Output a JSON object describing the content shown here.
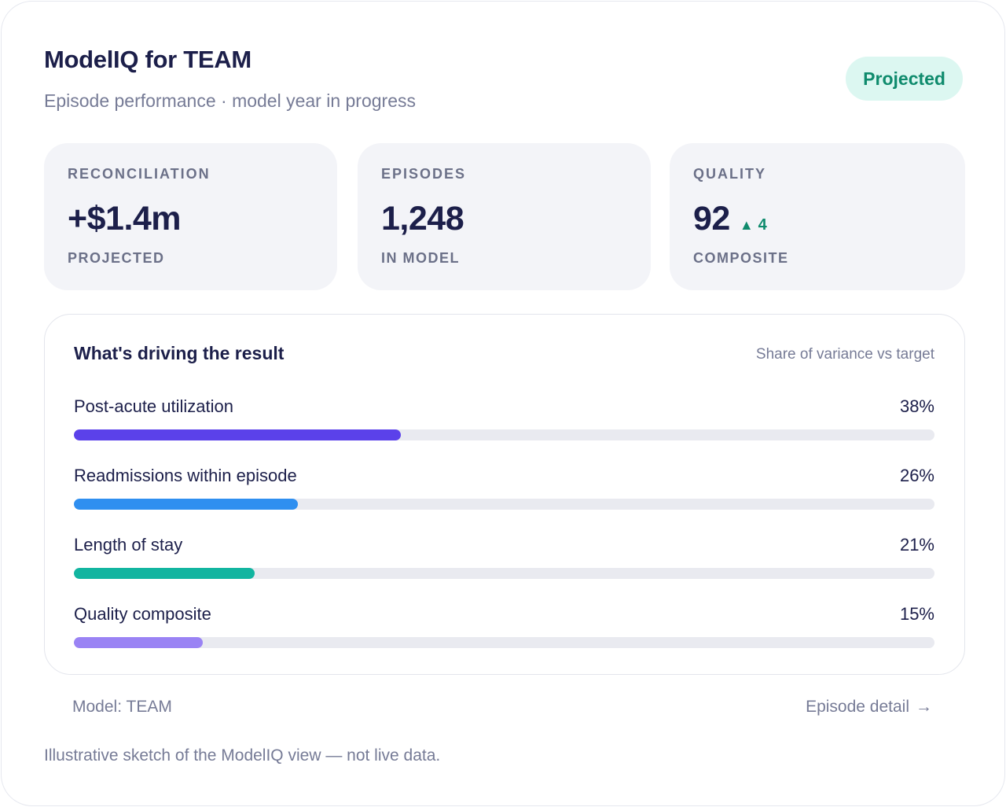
{
  "header": {
    "title": "ModelIQ for TEAM",
    "subtitle": "Episode performance · model year in progress",
    "badge": "Projected"
  },
  "kpis": [
    {
      "label": "RECONCILIATION",
      "value": "+$1.4m",
      "foot": "PROJECTED"
    },
    {
      "label": "EPISODES",
      "value": "1,248",
      "foot": "IN MODEL"
    },
    {
      "label": "QUALITY",
      "value": "92",
      "delta": "4",
      "delta_icon": "triangle-up-icon",
      "foot": "COMPOSITE"
    }
  ],
  "drivers": {
    "title": "What's driving the result",
    "note": "Share of variance vs target",
    "items": [
      {
        "label": "Post-acute utilization",
        "pct_label": "38%",
        "value": 0.38,
        "color": "#5b41ea"
      },
      {
        "label": "Readmissions within episode",
        "pct_label": "26%",
        "value": 0.26,
        "color": "#2f8ff0"
      },
      {
        "label": "Length of stay",
        "pct_label": "21%",
        "value": 0.21,
        "color": "#12b5a0"
      },
      {
        "label": "Quality composite",
        "pct_label": "15%",
        "value": 0.15,
        "color": "#9a83f4"
      }
    ]
  },
  "footer": {
    "model": "Model: TEAM",
    "link": "Episode detail",
    "link_icon": "arrow-right-icon",
    "disclaimer": "Illustrative sketch of the ModelIQ view — not live data."
  },
  "colors": {
    "accent_green": "#0f8b6d",
    "badge_bg": "#dcf7f1",
    "text_primary": "#1c1f4a",
    "text_muted": "#767b96"
  }
}
